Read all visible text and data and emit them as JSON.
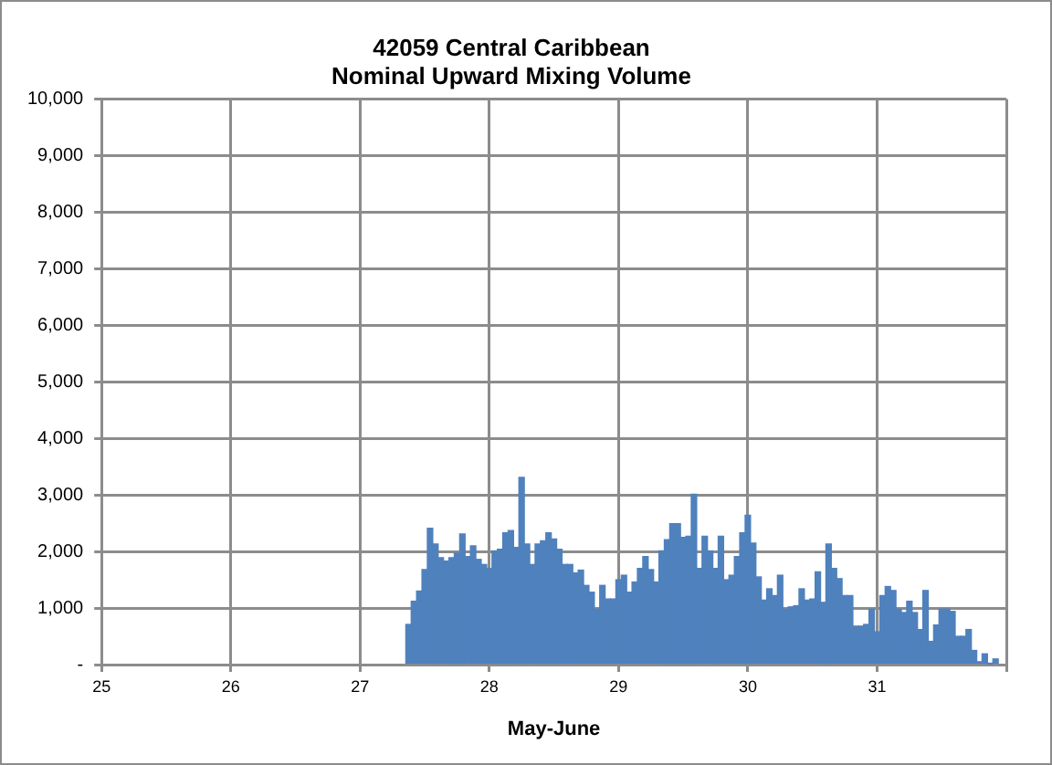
{
  "chart_data": {
    "type": "bar",
    "title": "42059 Central Caribbean",
    "subtitle": "Nominal Upward Mixing Volume",
    "xlabel": "May-June",
    "x": [
      27.375,
      27.4167,
      27.4583,
      27.5,
      27.5417,
      27.5833,
      27.625,
      27.6667,
      27.7083,
      27.75,
      27.7917,
      27.8333,
      27.875,
      27.9167,
      27.9583,
      28,
      28.0417,
      28.0833,
      28.125,
      28.1667,
      28.2083,
      28.25,
      28.2917,
      28.3333,
      28.375,
      28.4167,
      28.4583,
      28.5,
      28.5417,
      28.5833,
      28.625,
      28.6667,
      28.7083,
      28.75,
      28.7917,
      28.8333,
      28.875,
      28.9167,
      28.9583,
      29,
      29.0417,
      29.0833,
      29.125,
      29.1667,
      29.2083,
      29.25,
      29.2917,
      29.3333,
      29.375,
      29.4167,
      29.4583,
      29.5,
      29.5417,
      29.5833,
      29.625,
      29.6667,
      29.7083,
      29.75,
      29.7917,
      29.8333,
      29.875,
      29.9167,
      29.9583,
      30,
      30.0417,
      30.0833,
      30.125,
      30.1667,
      30.2083,
      30.25,
      30.2917,
      30.3333,
      30.375,
      30.4167,
      30.4583,
      30.5,
      30.5417,
      30.5833,
      30.625,
      30.6667,
      30.7083,
      30.75,
      30.7917,
      30.8333,
      30.875,
      30.9167,
      30.9583,
      31,
      31.0417,
      31.0833,
      31.125,
      31.1667,
      31.2083,
      31.25,
      31.2917,
      31.3333,
      31.375,
      31.4167,
      31.4583,
      31.5,
      31.5417,
      31.5833,
      31.625,
      31.6667,
      31.7083,
      31.75,
      31.7917,
      31.8333,
      31.875,
      31.9167
    ],
    "values": [
      710,
      1120,
      1300,
      1680,
      2410,
      2130,
      1890,
      1830,
      1890,
      1970,
      2310,
      1910,
      2100,
      1860,
      1770,
      1700,
      2010,
      2040,
      2330,
      2370,
      2070,
      3310,
      2130,
      1770,
      2130,
      2190,
      2330,
      2220,
      2040,
      1770,
      1770,
      1620,
      1670,
      1400,
      1280,
      980,
      1400,
      1160,
      1160,
      1500,
      1580,
      1280,
      1460,
      1700,
      1910,
      1680,
      1460,
      2010,
      2210,
      2490,
      2490,
      2250,
      2270,
      3010,
      1700,
      2270,
      2010,
      1700,
      2270,
      1500,
      1580,
      1910,
      2330,
      2640,
      2150,
      1550,
      1140,
      1340,
      1220,
      1580,
      980,
      1020,
      1040,
      1340,
      1140,
      1160,
      1640,
      1100,
      2130,
      1700,
      1520,
      1220,
      1220,
      680,
      680,
      710,
      980,
      580,
      1220,
      1380,
      1310,
      980,
      920,
      1120,
      920,
      620,
      1310,
      410,
      700,
      980,
      980,
      940,
      500,
      500,
      620,
      250,
      50,
      190,
      10,
      100
    ],
    "color": "#4f81bd",
    "xlim": [
      25,
      32
    ],
    "xticks": [
      25,
      26,
      27,
      28,
      29,
      30,
      31,
      {
        "value": 32,
        "label": null
      }
    ],
    "ylim": [
      0,
      10000
    ],
    "yticks": [
      {
        "value": 0,
        "label": "-"
      },
      {
        "value": 1000,
        "label": "1,000"
      },
      {
        "value": 2000,
        "label": "2,000"
      },
      {
        "value": 3000,
        "label": "3,000"
      },
      {
        "value": 4000,
        "label": "4,000"
      },
      {
        "value": 5000,
        "label": "5,000"
      },
      {
        "value": 6000,
        "label": "6,000"
      },
      {
        "value": 7000,
        "label": "7,000"
      },
      {
        "value": 8000,
        "label": "8,000"
      },
      {
        "value": 9000,
        "label": "9,000"
      },
      {
        "value": 10000,
        "label": "10,000"
      }
    ],
    "grid": true,
    "legend": false
  }
}
